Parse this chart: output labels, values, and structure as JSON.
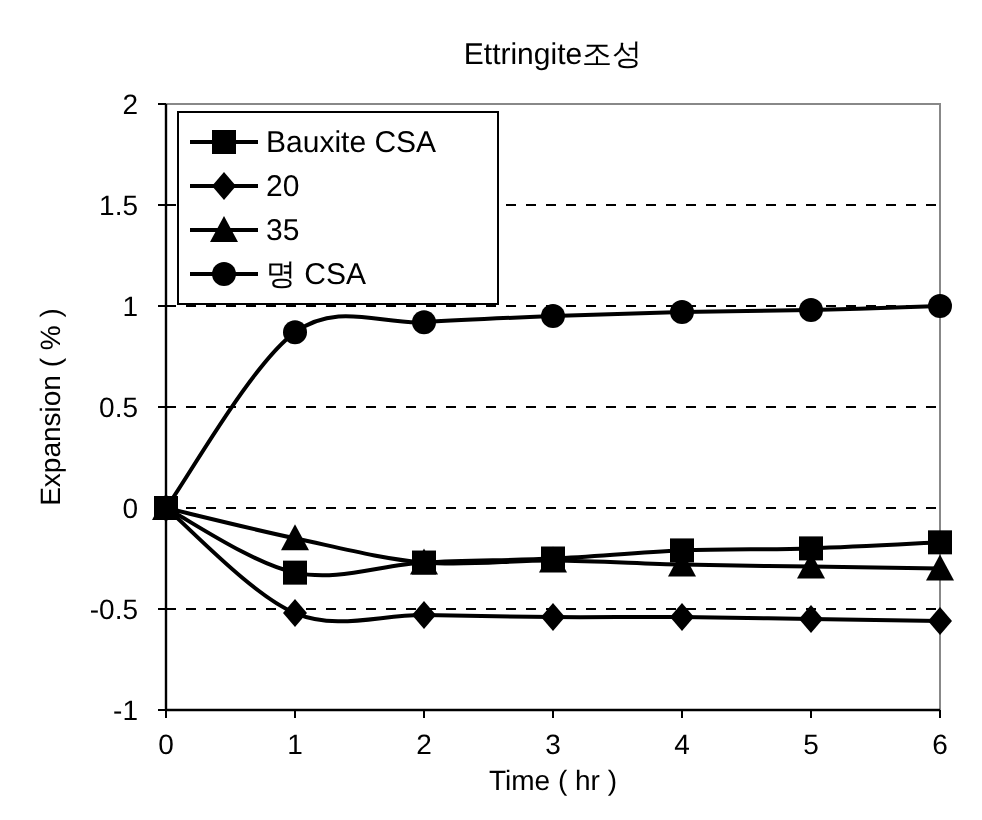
{
  "chart_data": {
    "type": "line",
    "title": "Ettringite조성",
    "xlabel": "Time ( hr )",
    "ylabel": "Expansion ( % )",
    "x": [
      0,
      1,
      2,
      3,
      4,
      5,
      6
    ],
    "series": [
      {
        "name": "Bauxite CSA",
        "color": "#000000",
        "marker": "square",
        "values": [
          0,
          -0.32,
          -0.27,
          -0.25,
          -0.21,
          -0.2,
          -0.17
        ]
      },
      {
        "name": "20",
        "color": "#000000",
        "marker": "diamond",
        "values": [
          0,
          -0.52,
          -0.53,
          -0.54,
          -0.54,
          -0.55,
          -0.56
        ]
      },
      {
        "name": "35",
        "color": "#000000",
        "marker": "triangle",
        "values": [
          0,
          -0.15,
          -0.27,
          -0.26,
          -0.28,
          -0.29,
          -0.3
        ]
      },
      {
        "name": "명 CSA",
        "color": "#000000",
        "marker": "circle",
        "values": [
          0,
          0.87,
          0.92,
          0.95,
          0.97,
          0.98,
          1.0
        ]
      }
    ],
    "xlim": [
      0,
      6
    ],
    "xticks": [
      0,
      1,
      2,
      3,
      4,
      5,
      6
    ],
    "ylim": [
      -1,
      2
    ],
    "yticks": [
      -1,
      -0.5,
      0,
      0.5,
      1,
      1.5,
      2
    ],
    "grid": "y",
    "legend": "top left",
    "line_style": "solid"
  }
}
